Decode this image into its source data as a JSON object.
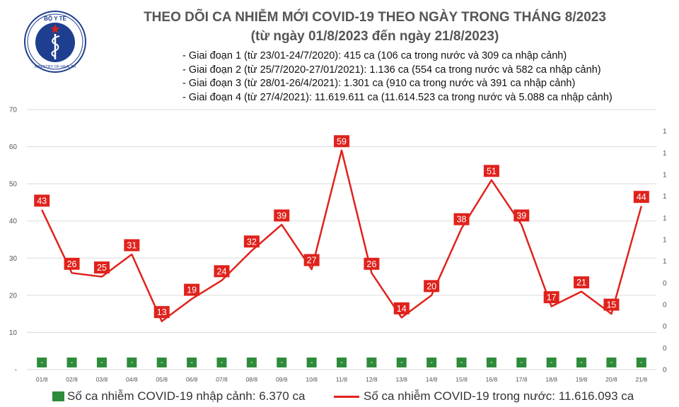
{
  "logo": {
    "top_text": "BỘ Y TẾ",
    "bottom_text": "MINISTRY OF HEALTH",
    "icon": "caduceus-star-emblem"
  },
  "header": {
    "title": "THEO DÕI CA NHIỄM MỚI COVID-19 THEO NGÀY TRONG THÁNG 8/2023",
    "subtitle": "(từ ngày 01/8/2023 đến ngày 21/8/2023)",
    "notes": [
      "- Giai đoạn 1 (từ 23/01-24/7/2020): 415 ca (106 ca trong nước và 309 ca nhập cảnh)",
      "- Giai đoạn 2 (từ 25/7/2020-27/01/2021): 1.136 ca (554 ca trong nước và 582 ca nhập cảnh)",
      "- Giai đoạn 3 (từ 28/01-26/4/2021): 1.301 ca (910 ca trong nước và 391 ca nhập cảnh)",
      "- Giai đoạn 4 (từ 27/4/2021): 11.619.611 ca (11.614.523 ca trong nước và 5.088 ca nhập cảnh)"
    ]
  },
  "colors": {
    "line": "#e0221c",
    "bar": "#2e8b3a",
    "label_bg": "#e0221c",
    "grid": "#d9d9d9"
  },
  "chart_data": {
    "type": "line",
    "categories": [
      "01/8",
      "02/8",
      "03/8",
      "04/8",
      "05/8",
      "06/8",
      "07/8",
      "08/8",
      "09/8",
      "10/8",
      "11/8",
      "12/8",
      "13/8",
      "14/8",
      "15/8",
      "16/8",
      "17/8",
      "18/8",
      "19/8",
      "20/8",
      "21/8"
    ],
    "series": [
      {
        "name": "Số ca nhiễm COVID-19 trong nước: 11.616.093 ca",
        "type": "line",
        "values": [
          43,
          26,
          25,
          31,
          13,
          19,
          24,
          32,
          39,
          27,
          59,
          26,
          14,
          20,
          38,
          51,
          39,
          17,
          21,
          15,
          44
        ]
      },
      {
        "name": "Số ca nhiễm COVID-19 nhập cảnh: 6.370 ca",
        "type": "bar",
        "values": [
          0,
          0,
          0,
          0,
          0,
          0,
          0,
          0,
          0,
          0,
          0,
          0,
          0,
          0,
          0,
          0,
          0,
          0,
          0,
          0,
          0
        ],
        "data_labels": [
          "-",
          "-",
          "-",
          "-",
          "-",
          "-",
          "-",
          "-",
          "-",
          "-",
          "-",
          "-",
          "-",
          "-",
          "-",
          "-",
          "-",
          "-",
          "-",
          "-",
          "-"
        ]
      }
    ],
    "y_left": {
      "ylim": [
        0,
        70
      ],
      "ticks": [
        "-",
        "10",
        "20",
        "30",
        "40",
        "50",
        "60",
        "70"
      ]
    },
    "y_right": {
      "tick_labels": [
        "0",
        "0",
        "0",
        "0",
        "0",
        "1",
        "1",
        "1",
        "1",
        "1",
        "1",
        "1"
      ]
    },
    "grid": true,
    "legend": "bottom"
  }
}
